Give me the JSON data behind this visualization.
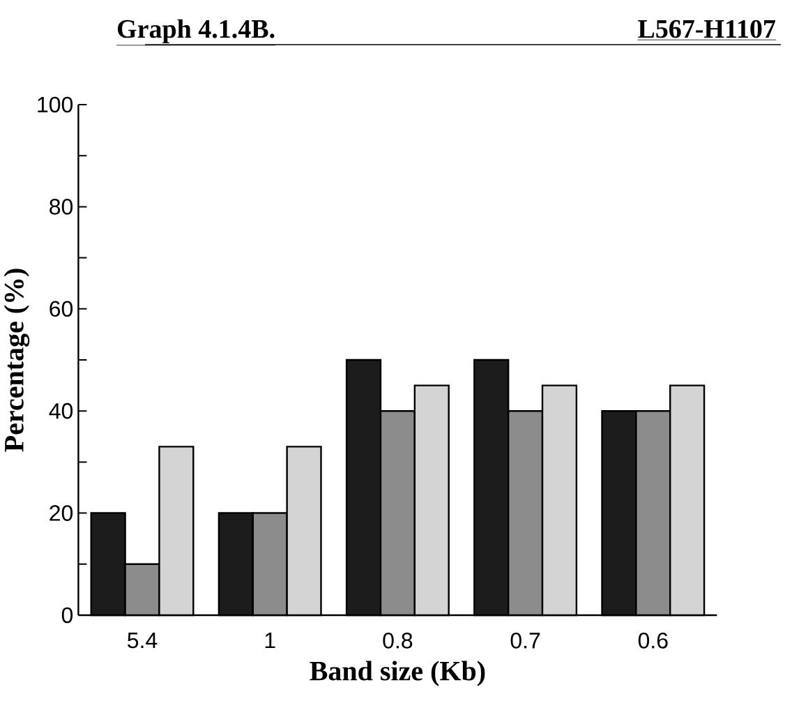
{
  "chart_data": {
    "type": "bar",
    "title": "Graph 4.1.4B.",
    "subtitle": "L567-H1107",
    "xlabel": "Band size (Kb)",
    "ylabel": "Percentage (%)",
    "categories": [
      "5.4",
      "1",
      "0.8",
      "0.7",
      "0.6"
    ],
    "series": [
      {
        "color": "#1c1c1c",
        "values": [
          20,
          20,
          50,
          50,
          40
        ]
      },
      {
        "color": "#8c8c8c",
        "values": [
          10,
          20,
          40,
          40,
          40
        ]
      },
      {
        "color": "#d4d4d4",
        "values": [
          33,
          33,
          45,
          45,
          45
        ]
      }
    ],
    "ylim": [
      0,
      100
    ],
    "yticks": [
      0,
      {
        "value": 10,
        "label": null
      },
      20,
      {
        "value": 30,
        "label": null
      },
      40,
      {
        "value": 50,
        "label": null
      },
      60,
      {
        "value": 70,
        "label": null
      },
      80,
      {
        "value": 90,
        "label": null
      },
      100
    ],
    "grid": false
  }
}
